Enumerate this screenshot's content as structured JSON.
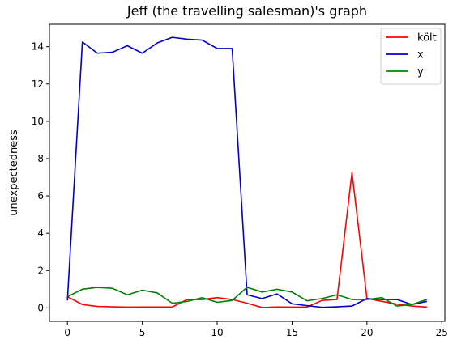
{
  "chart_data": {
    "type": "line",
    "title": "Jeff (the travelling salesman)'s graph",
    "xlabel": "",
    "ylabel": "unexpectedness",
    "x": [
      0,
      1,
      2,
      3,
      4,
      5,
      6,
      7,
      8,
      9,
      10,
      11,
      12,
      13,
      14,
      15,
      16,
      17,
      18,
      19,
      20,
      21,
      22,
      23,
      24
    ],
    "xlim": [
      -1.2,
      25.2
    ],
    "ylim": [
      -0.72,
      15.2
    ],
    "xticks": [
      0,
      5,
      10,
      15,
      20,
      25
    ],
    "yticks": [
      0,
      2,
      4,
      6,
      8,
      10,
      12,
      14
    ],
    "grid": false,
    "legend_position": "top-right",
    "series": [
      {
        "name": "költ",
        "color": "#ff0000",
        "values": [
          0.6,
          0.18,
          0.08,
          0.06,
          0.04,
          0.05,
          0.05,
          0.05,
          0.45,
          0.45,
          0.55,
          0.45,
          0.25,
          0.02,
          0.05,
          0.04,
          0.05,
          0.4,
          0.45,
          7.25,
          0.5,
          0.35,
          0.2,
          0.1,
          0.04
        ]
      },
      {
        "name": "x",
        "color": "#0000cc",
        "values": [
          0.4,
          14.25,
          13.65,
          13.7,
          14.05,
          13.65,
          14.2,
          14.5,
          14.4,
          14.35,
          13.9,
          13.9,
          0.7,
          0.5,
          0.75,
          0.22,
          0.12,
          0.03,
          0.06,
          0.1,
          0.5,
          0.45,
          0.45,
          0.18,
          0.35
        ]
      },
      {
        "name": "y",
        "color": "#008000",
        "values": [
          0.6,
          1.0,
          1.1,
          1.05,
          0.7,
          0.95,
          0.8,
          0.25,
          0.35,
          0.55,
          0.3,
          0.4,
          1.1,
          0.85,
          1.0,
          0.85,
          0.38,
          0.5,
          0.7,
          0.45,
          0.45,
          0.55,
          0.1,
          0.18,
          0.45
        ]
      }
    ]
  }
}
